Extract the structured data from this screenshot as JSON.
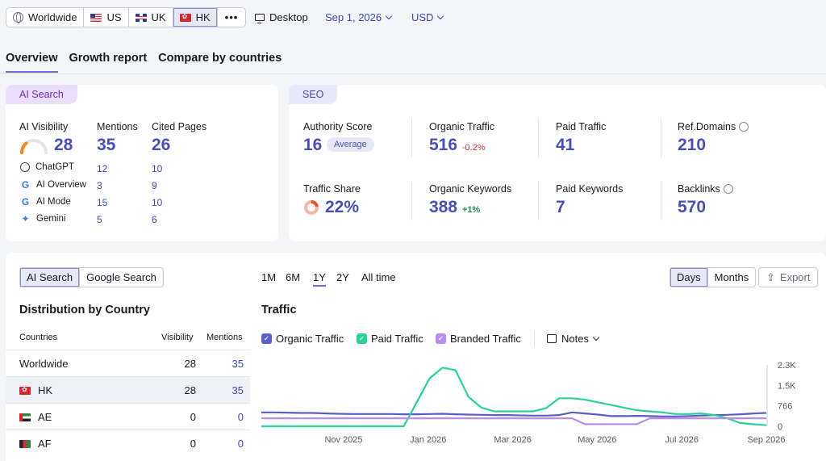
{
  "topbar": {
    "region_segments": [
      {
        "label": "Worldwide",
        "icon": "globe-icon"
      },
      {
        "label": "US",
        "icon": "flag-us-icon"
      },
      {
        "label": "UK",
        "icon": "flag-uk-icon"
      },
      {
        "label": "HK",
        "icon": "flag-hk-icon",
        "active": true
      }
    ],
    "more_label": "•••",
    "device_label": "Desktop",
    "date_label": "Sep 1, 2026",
    "currency_label": "USD"
  },
  "tabs": [
    "Overview",
    "Growth report",
    "Compare by countries"
  ],
  "ai_card": {
    "pill": "AI Search",
    "visibility_label": "AI Visibility",
    "visibility_value": "28",
    "visibility_gauge": 0.28,
    "mentions_label": "Mentions",
    "mentions_value": "35",
    "cited_label": "Cited Pages",
    "cited_value": "26",
    "rows": [
      {
        "name": "ChatGPT",
        "mentions": "12",
        "cited": "10"
      },
      {
        "name": "AI Overview",
        "mentions": "3",
        "cited": "9"
      },
      {
        "name": "AI Mode",
        "mentions": "15",
        "cited": "10"
      },
      {
        "name": "Gemini",
        "mentions": "5",
        "cited": "6"
      }
    ]
  },
  "seo_card": {
    "pill": "SEO",
    "authority_label": "Authority Score",
    "authority_value": "16",
    "authority_badge": "Average",
    "organic_label": "Organic Traffic",
    "organic_value": "516",
    "organic_change": "-0.2%",
    "paid_label": "Paid Traffic",
    "paid_value": "41",
    "refdomains_label": "Ref.Domains",
    "refdomains_value": "210",
    "share_label": "Traffic Share",
    "share_value": "22%",
    "share_fraction": 0.22,
    "organic_kw_label": "Organic Keywords",
    "organic_kw_value": "388",
    "organic_kw_change": "+1%",
    "paid_kw_label": "Paid Keywords",
    "paid_kw_value": "7",
    "backlinks_label": "Backlinks",
    "backlinks_value": "570"
  },
  "distribution": {
    "toggle": [
      "AI Search",
      "Google Search"
    ],
    "title": "Distribution by Country",
    "columns": [
      "Countries",
      "Visibility",
      "Mentions"
    ],
    "rows": [
      {
        "country": "Worldwide",
        "visibility": "28",
        "mentions": "35"
      },
      {
        "country": "HK",
        "visibility": "28",
        "mentions": "35",
        "flag": "flag-hk-icon"
      },
      {
        "country": "AE",
        "visibility": "0",
        "mentions": "0",
        "flag": "flag-ae-icon"
      },
      {
        "country": "AF",
        "visibility": "0",
        "mentions": "0",
        "flag": "flag-af-icon"
      }
    ]
  },
  "traffic": {
    "periods": [
      "1M",
      "6M",
      "1Y",
      "2Y",
      "All time"
    ],
    "active_period": "1Y",
    "granularity": [
      "Days",
      "Months"
    ],
    "export_label": "Export",
    "title": "Traffic",
    "legend": [
      {
        "name": "Organic Traffic",
        "color": "#5b5fc7"
      },
      {
        "name": "Paid Traffic",
        "color": "#2ccf9e"
      },
      {
        "name": "Branded Traffic",
        "color": "#b98ee8"
      }
    ],
    "notes_label": "Notes"
  },
  "chart_data": {
    "type": "line",
    "x_ticks": [
      "Nov 2025",
      "Jan 2026",
      "Mar 2026",
      "May 2026",
      "Jul 2026",
      "Sep 2026"
    ],
    "y_ticks": [
      "2.3K",
      "1.5K",
      "766",
      "0"
    ],
    "ylim": [
      0,
      2300
    ],
    "series": [
      {
        "name": "Organic Traffic",
        "values": [
          520,
          520,
          510,
          500,
          500,
          480,
          470,
          460,
          460,
          460,
          460,
          450,
          450,
          460,
          470,
          450,
          440,
          430,
          420,
          420,
          410,
          400,
          400,
          420,
          520,
          480,
          440,
          380,
          380,
          390,
          380,
          370,
          370,
          380,
          400,
          420,
          430,
          450,
          480,
          500
        ]
      },
      {
        "name": "Paid Traffic",
        "values": [
          0,
          0,
          0,
          0,
          0,
          0,
          0,
          0,
          0,
          0,
          0,
          0,
          900,
          1800,
          2200,
          2100,
          1100,
          700,
          560,
          560,
          560,
          560,
          680,
          1050,
          1050,
          1000,
          900,
          800,
          700,
          600,
          560,
          520,
          460,
          460,
          480,
          420,
          300,
          120,
          80,
          40
        ]
      },
      {
        "name": "Branded Traffic",
        "values": [
          300,
          300,
          300,
          300,
          300,
          300,
          300,
          300,
          300,
          300,
          300,
          300,
          300,
          300,
          300,
          300,
          300,
          300,
          300,
          300,
          300,
          300,
          300,
          300,
          300,
          80,
          80,
          80,
          80,
          80,
          300,
          300,
          300,
          300,
          300,
          300,
          300,
          300,
          300,
          300
        ]
      }
    ]
  }
}
